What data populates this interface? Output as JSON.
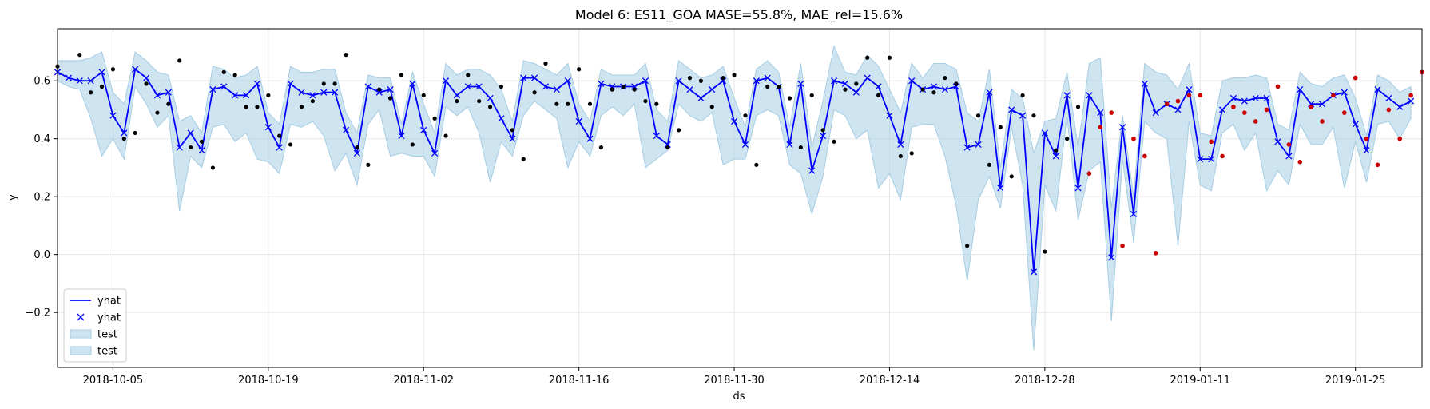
{
  "chart_data": {
    "type": "line",
    "title": "Model 6: ES11_GOA MASE=55.8%, MAE_rel=15.6%",
    "xlabel": "ds",
    "ylabel": "y",
    "xlim": [
      "2018-09-30",
      "2019-01-31"
    ],
    "ylim": [
      -0.39,
      0.78
    ],
    "x_ticks": [
      "2018-10-05",
      "2018-10-19",
      "2018-11-02",
      "2018-11-16",
      "2018-11-30",
      "2018-12-14",
      "2018-12-28",
      "2019-01-11",
      "2019-01-25"
    ],
    "y_ticks": [
      -0.2,
      0.0,
      0.2,
      0.4,
      0.6
    ],
    "y_tick_labels": [
      "−0.2",
      "0.0",
      "0.2",
      "0.4",
      "0.6"
    ],
    "grid": true,
    "legend_position": "lower-left",
    "legend": [
      {
        "label": "yhat",
        "kind": "line",
        "color": "#0000ff"
      },
      {
        "label": "yhat",
        "kind": "marker",
        "color": "#0000ff"
      },
      {
        "label": "test",
        "kind": "band",
        "color": "#a6cde4"
      },
      {
        "label": "test",
        "kind": "band",
        "color": "#a6cde4"
      }
    ],
    "colors": {
      "line": "#0000ff",
      "band": "#a6cde4",
      "actual": "#000000",
      "test_actual": "#cc0000"
    },
    "start_date": "2018-09-30",
    "series": [
      {
        "name": "yhat",
        "values": [
          0.63,
          0.61,
          0.6,
          0.6,
          0.63,
          0.48,
          0.42,
          0.64,
          0.61,
          0.55,
          0.56,
          0.37,
          0.42,
          0.36,
          0.57,
          0.58,
          0.55,
          0.55,
          0.59,
          0.44,
          0.37,
          0.59,
          0.56,
          0.55,
          0.56,
          0.56,
          0.43,
          0.35,
          0.58,
          0.56,
          0.57,
          0.41,
          0.59,
          0.43,
          0.35,
          0.6,
          0.55,
          0.58,
          0.58,
          0.54,
          0.47,
          0.4,
          0.61,
          0.61,
          0.58,
          0.57,
          0.6,
          0.46,
          0.4,
          0.59,
          0.58,
          0.58,
          0.58,
          0.6,
          0.41,
          0.38,
          0.6,
          0.57,
          0.54,
          0.57,
          0.6,
          0.46,
          0.38,
          0.6,
          0.61,
          0.58,
          0.38,
          0.59,
          0.29,
          0.41,
          0.6,
          0.59,
          0.56,
          0.61,
          0.58,
          0.48,
          0.38,
          0.6,
          0.57,
          0.58,
          0.57,
          0.58,
          0.37,
          0.38,
          0.56,
          0.23,
          0.5,
          0.48,
          -0.06,
          0.42,
          0.34,
          0.55,
          0.23,
          0.55,
          0.49,
          -0.01,
          0.44,
          0.14,
          0.59,
          0.49,
          0.52,
          0.5,
          0.57,
          0.33,
          0.33,
          0.5,
          0.54,
          0.53,
          0.54,
          0.54,
          0.39,
          0.34,
          0.57,
          0.52,
          0.52,
          0.55,
          0.56,
          0.45,
          0.36,
          0.57,
          0.54,
          0.51,
          0.53
        ]
      }
    ],
    "band": {
      "lower": [
        0.6,
        0.58,
        0.57,
        0.47,
        0.34,
        0.4,
        0.33,
        0.58,
        0.52,
        0.44,
        0.48,
        0.15,
        0.34,
        0.3,
        0.44,
        0.45,
        0.39,
        0.42,
        0.33,
        0.32,
        0.28,
        0.45,
        0.44,
        0.46,
        0.41,
        0.29,
        0.35,
        0.24,
        0.45,
        0.5,
        0.34,
        0.35,
        0.34,
        0.34,
        0.27,
        0.51,
        0.48,
        0.51,
        0.42,
        0.25,
        0.39,
        0.34,
        0.48,
        0.53,
        0.5,
        0.47,
        0.3,
        0.39,
        0.34,
        0.48,
        0.51,
        0.48,
        0.52,
        0.3,
        0.33,
        0.36,
        0.52,
        0.48,
        0.46,
        0.49,
        0.31,
        0.33,
        0.33,
        0.48,
        0.5,
        0.48,
        0.31,
        0.28,
        0.14,
        0.27,
        0.5,
        0.48,
        0.4,
        0.43,
        0.23,
        0.28,
        0.19,
        0.44,
        0.45,
        0.45,
        0.34,
        0.17,
        -0.09,
        0.19,
        0.27,
        0.16,
        0.44,
        0.24,
        -0.33,
        0.24,
        0.15,
        0.48,
        0.12,
        0.29,
        0.32,
        -0.23,
        0.33,
        0.04,
        0.46,
        0.42,
        0.4,
        0.03,
        0.46,
        0.24,
        0.22,
        0.42,
        0.45,
        0.36,
        0.42,
        0.22,
        0.29,
        0.24,
        0.45,
        0.38,
        0.38,
        0.44,
        0.23,
        0.39,
        0.25,
        0.45,
        0.46,
        0.4,
        0.47
      ],
      "upper": [
        0.67,
        0.67,
        0.67,
        0.68,
        0.7,
        0.56,
        0.52,
        0.7,
        0.67,
        0.63,
        0.62,
        0.46,
        0.48,
        0.42,
        0.65,
        0.64,
        0.61,
        0.62,
        0.65,
        0.49,
        0.45,
        0.65,
        0.63,
        0.63,
        0.64,
        0.64,
        0.49,
        0.42,
        0.62,
        0.61,
        0.61,
        0.45,
        0.63,
        0.52,
        0.42,
        0.66,
        0.62,
        0.64,
        0.64,
        0.62,
        0.57,
        0.46,
        0.67,
        0.66,
        0.64,
        0.62,
        0.66,
        0.52,
        0.46,
        0.64,
        0.62,
        0.62,
        0.62,
        0.66,
        0.5,
        0.46,
        0.67,
        0.64,
        0.61,
        0.62,
        0.65,
        0.54,
        0.44,
        0.64,
        0.67,
        0.63,
        0.44,
        0.66,
        0.37,
        0.53,
        0.72,
        0.63,
        0.62,
        0.69,
        0.65,
        0.57,
        0.49,
        0.66,
        0.61,
        0.66,
        0.66,
        0.64,
        0.49,
        0.46,
        0.64,
        0.3,
        0.57,
        0.54,
        0.35,
        0.46,
        0.47,
        0.63,
        0.37,
        0.66,
        0.68,
        0.16,
        0.48,
        0.2,
        0.66,
        0.63,
        0.62,
        0.57,
        0.66,
        0.42,
        0.41,
        0.6,
        0.61,
        0.61,
        0.62,
        0.61,
        0.45,
        0.43,
        0.63,
        0.59,
        0.58,
        0.61,
        0.62,
        0.54,
        0.41,
        0.62,
        0.6,
        0.56,
        0.58
      ]
    },
    "actual_points": [
      {
        "x": 0,
        "y": 0.65
      },
      {
        "x": 2,
        "y": 0.69
      },
      {
        "x": 3,
        "y": 0.56
      },
      {
        "x": 4,
        "y": 0.58
      },
      {
        "x": 5,
        "y": 0.64
      },
      {
        "x": 6,
        "y": 0.4
      },
      {
        "x": 7,
        "y": 0.42
      },
      {
        "x": 8,
        "y": 0.59
      },
      {
        "x": 9,
        "y": 0.49
      },
      {
        "x": 10,
        "y": 0.52
      },
      {
        "x": 11,
        "y": 0.67
      },
      {
        "x": 12,
        "y": 0.37
      },
      {
        "x": 13,
        "y": 0.39
      },
      {
        "x": 14,
        "y": 0.3
      },
      {
        "x": 15,
        "y": 0.63
      },
      {
        "x": 16,
        "y": 0.62
      },
      {
        "x": 17,
        "y": 0.51
      },
      {
        "x": 18,
        "y": 0.51
      },
      {
        "x": 19,
        "y": 0.55
      },
      {
        "x": 20,
        "y": 0.41
      },
      {
        "x": 21,
        "y": 0.38
      },
      {
        "x": 22,
        "y": 0.51
      },
      {
        "x": 23,
        "y": 0.53
      },
      {
        "x": 24,
        "y": 0.59
      },
      {
        "x": 25,
        "y": 0.59
      },
      {
        "x": 26,
        "y": 0.69
      },
      {
        "x": 27,
        "y": 0.37
      },
      {
        "x": 28,
        "y": 0.31
      },
      {
        "x": 29,
        "y": 0.57
      },
      {
        "x": 30,
        "y": 0.54
      },
      {
        "x": 31,
        "y": 0.62
      },
      {
        "x": 32,
        "y": 0.38
      },
      {
        "x": 33,
        "y": 0.55
      },
      {
        "x": 34,
        "y": 0.47
      },
      {
        "x": 35,
        "y": 0.41
      },
      {
        "x": 36,
        "y": 0.53
      },
      {
        "x": 37,
        "y": 0.62
      },
      {
        "x": 38,
        "y": 0.53
      },
      {
        "x": 39,
        "y": 0.51
      },
      {
        "x": 40,
        "y": 0.58
      },
      {
        "x": 41,
        "y": 0.43
      },
      {
        "x": 42,
        "y": 0.33
      },
      {
        "x": 43,
        "y": 0.56
      },
      {
        "x": 44,
        "y": 0.66
      },
      {
        "x": 45,
        "y": 0.52
      },
      {
        "x": 46,
        "y": 0.52
      },
      {
        "x": 47,
        "y": 0.64
      },
      {
        "x": 48,
        "y": 0.52
      },
      {
        "x": 49,
        "y": 0.37
      },
      {
        "x": 50,
        "y": 0.57
      },
      {
        "x": 51,
        "y": 0.58
      },
      {
        "x": 52,
        "y": 0.57
      },
      {
        "x": 53,
        "y": 0.53
      },
      {
        "x": 54,
        "y": 0.52
      },
      {
        "x": 55,
        "y": 0.37
      },
      {
        "x": 56,
        "y": 0.43
      },
      {
        "x": 57,
        "y": 0.61
      },
      {
        "x": 58,
        "y": 0.6
      },
      {
        "x": 59,
        "y": 0.51
      },
      {
        "x": 60,
        "y": 0.61
      },
      {
        "x": 61,
        "y": 0.62
      },
      {
        "x": 62,
        "y": 0.48
      },
      {
        "x": 63,
        "y": 0.31
      },
      {
        "x": 64,
        "y": 0.58
      },
      {
        "x": 65,
        "y": 0.58
      },
      {
        "x": 66,
        "y": 0.54
      },
      {
        "x": 67,
        "y": 0.37
      },
      {
        "x": 68,
        "y": 0.55
      },
      {
        "x": 69,
        "y": 0.43
      },
      {
        "x": 70,
        "y": 0.39
      },
      {
        "x": 71,
        "y": 0.57
      },
      {
        "x": 72,
        "y": 0.59
      },
      {
        "x": 73,
        "y": 0.68
      },
      {
        "x": 74,
        "y": 0.55
      },
      {
        "x": 75,
        "y": 0.68
      },
      {
        "x": 76,
        "y": 0.34
      },
      {
        "x": 77,
        "y": 0.35
      },
      {
        "x": 78,
        "y": 0.57
      },
      {
        "x": 79,
        "y": 0.56
      },
      {
        "x": 80,
        "y": 0.61
      },
      {
        "x": 81,
        "y": 0.59
      },
      {
        "x": 82,
        "y": 0.03
      },
      {
        "x": 83,
        "y": 0.48
      },
      {
        "x": 84,
        "y": 0.31
      },
      {
        "x": 85,
        "y": 0.44
      },
      {
        "x": 86,
        "y": 0.27
      },
      {
        "x": 87,
        "y": 0.55
      },
      {
        "x": 88,
        "y": 0.48
      },
      {
        "x": 89,
        "y": 0.01
      },
      {
        "x": 90,
        "y": 0.36
      },
      {
        "x": 91,
        "y": 0.4
      },
      {
        "x": 92,
        "y": 0.51
      }
    ],
    "test_actual_points": [
      {
        "x": 93,
        "y": 0.28
      },
      {
        "x": 94,
        "y": 0.44
      },
      {
        "x": 95,
        "y": 0.49
      },
      {
        "x": 96,
        "y": 0.03
      },
      {
        "x": 97,
        "y": 0.4
      },
      {
        "x": 98,
        "y": 0.34
      },
      {
        "x": 99,
        "y": 0.005
      },
      {
        "x": 100,
        "y": 0.52
      },
      {
        "x": 101,
        "y": 0.53
      },
      {
        "x": 102,
        "y": 0.55
      },
      {
        "x": 103,
        "y": 0.55
      },
      {
        "x": 104,
        "y": 0.39
      },
      {
        "x": 105,
        "y": 0.34
      },
      {
        "x": 106,
        "y": 0.51
      },
      {
        "x": 107,
        "y": 0.49
      },
      {
        "x": 108,
        "y": 0.46
      },
      {
        "x": 109,
        "y": 0.5
      },
      {
        "x": 110,
        "y": 0.58
      },
      {
        "x": 111,
        "y": 0.38
      },
      {
        "x": 112,
        "y": 0.32
      },
      {
        "x": 113,
        "y": 0.51
      },
      {
        "x": 114,
        "y": 0.46
      },
      {
        "x": 115,
        "y": 0.55
      },
      {
        "x": 116,
        "y": 0.49
      },
      {
        "x": 117,
        "y": 0.61
      },
      {
        "x": 118,
        "y": 0.4
      },
      {
        "x": 119,
        "y": 0.31
      },
      {
        "x": 120,
        "y": 0.5
      },
      {
        "x": 121,
        "y": 0.4
      },
      {
        "x": 122,
        "y": 0.55
      },
      {
        "x": 123,
        "y": 0.63
      }
    ]
  }
}
